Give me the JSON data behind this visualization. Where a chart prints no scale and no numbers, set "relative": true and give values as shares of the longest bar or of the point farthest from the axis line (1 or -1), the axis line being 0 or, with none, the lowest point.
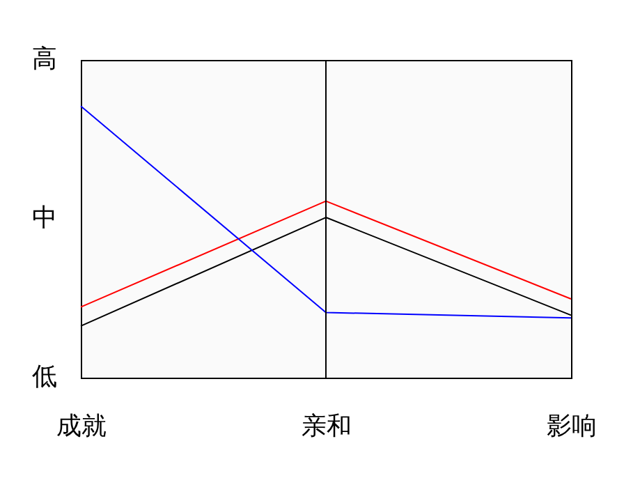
{
  "chart_data": {
    "type": "line",
    "categories": [
      "成就",
      "亲和",
      "影响"
    ],
    "series": [
      {
        "color": "#ff0000",
        "values": [
          0.26,
          0.65,
          0.29
        ]
      },
      {
        "color": "#000000",
        "values": [
          0.19,
          0.59,
          0.23
        ]
      },
      {
        "color": "#0000ff",
        "values": [
          1,
          0.24,
          0.22
        ]
      }
    ],
    "relative": true,
    "annotations": [
      "高",
      "中",
      "低"
    ],
    "ref_lines": [
      {
        "axis": "x",
        "value": "亲和",
        "color": "#000000"
      }
    ],
    "grid": false,
    "legend": false,
    "marker": "none",
    "line_style": "solid"
  }
}
